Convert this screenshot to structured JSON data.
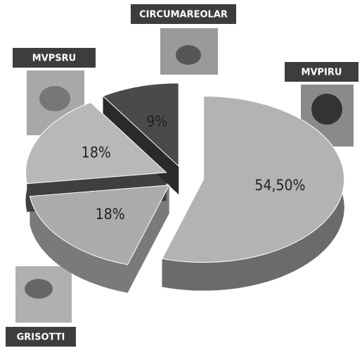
{
  "chart_data": {
    "type": "pie3d",
    "categories": [
      "MVPIRU",
      "GRISOTTI",
      "MVPSRU",
      "CIRCUMAREOLAR"
    ],
    "values": [
      54.5,
      18,
      18,
      9
    ],
    "value_labels": [
      "54,50%",
      "18%",
      "18%",
      "9%"
    ],
    "colors": [
      "#b3b3b3",
      "#ababab",
      "#b8b8b8",
      "#4a4a4a"
    ],
    "side_colors": [
      "#6b6b6b",
      "#7a7a7a",
      "#3f3f3f",
      "#2a2a2a"
    ]
  }
}
